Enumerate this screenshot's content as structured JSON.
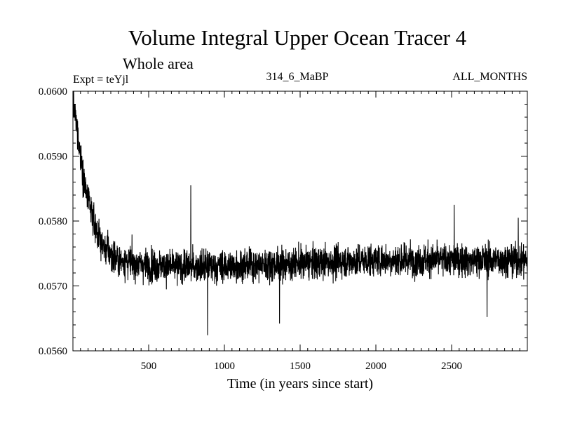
{
  "chart_data": {
    "type": "line",
    "title": "Volume Integral Upper Ocean Tracer 4",
    "subtitle": "Whole area",
    "expt_label": "Expt = teYjl",
    "period_label": "314_6_MaBP",
    "months_label": "ALL_MONTHS",
    "xlabel": "Time (in years since start)",
    "ylabel": "",
    "xlim": [
      0,
      3000
    ],
    "ylim": [
      0.056,
      0.06
    ],
    "x_ticks": [
      500,
      1000,
      1500,
      2000,
      2500
    ],
    "x_tick_labels": [
      "500",
      "1000",
      "1500",
      "2000",
      "2500"
    ],
    "y_ticks": [
      0.056,
      0.057,
      0.058,
      0.059,
      0.06
    ],
    "y_tick_labels": [
      "0.0560",
      "0.0570",
      "0.0580",
      "0.0590",
      "0.0600"
    ],
    "series": [
      {
        "name": "Tracer 4",
        "color": "#000000",
        "x_start": 1,
        "x_step": 1,
        "envelope": [
          {
            "x": 1,
            "y": 0.0598
          },
          {
            "x": 25,
            "y": 0.0595
          },
          {
            "x": 50,
            "y": 0.059
          },
          {
            "x": 75,
            "y": 0.0586
          },
          {
            "x": 100,
            "y": 0.0583
          },
          {
            "x": 150,
            "y": 0.0579
          },
          {
            "x": 200,
            "y": 0.0576
          },
          {
            "x": 300,
            "y": 0.0574
          },
          {
            "x": 400,
            "y": 0.05735
          },
          {
            "x": 600,
            "y": 0.0573
          },
          {
            "x": 1000,
            "y": 0.0573
          },
          {
            "x": 1500,
            "y": 0.05735
          },
          {
            "x": 2000,
            "y": 0.0574
          },
          {
            "x": 2500,
            "y": 0.0574
          },
          {
            "x": 3000,
            "y": 0.0574
          }
        ],
        "noise_sd": 0.0002,
        "notable_points": [
          {
            "x": 8,
            "y": 0.0598
          },
          {
            "x": 30,
            "y": 0.0591
          },
          {
            "x": 778,
            "y": 0.05855
          },
          {
            "x": 889,
            "y": 0.05624
          },
          {
            "x": 1364,
            "y": 0.05642
          },
          {
            "x": 2517,
            "y": 0.05825
          },
          {
            "x": 2734,
            "y": 0.05652
          },
          {
            "x": 2940,
            "y": 0.05805
          }
        ]
      }
    ]
  }
}
